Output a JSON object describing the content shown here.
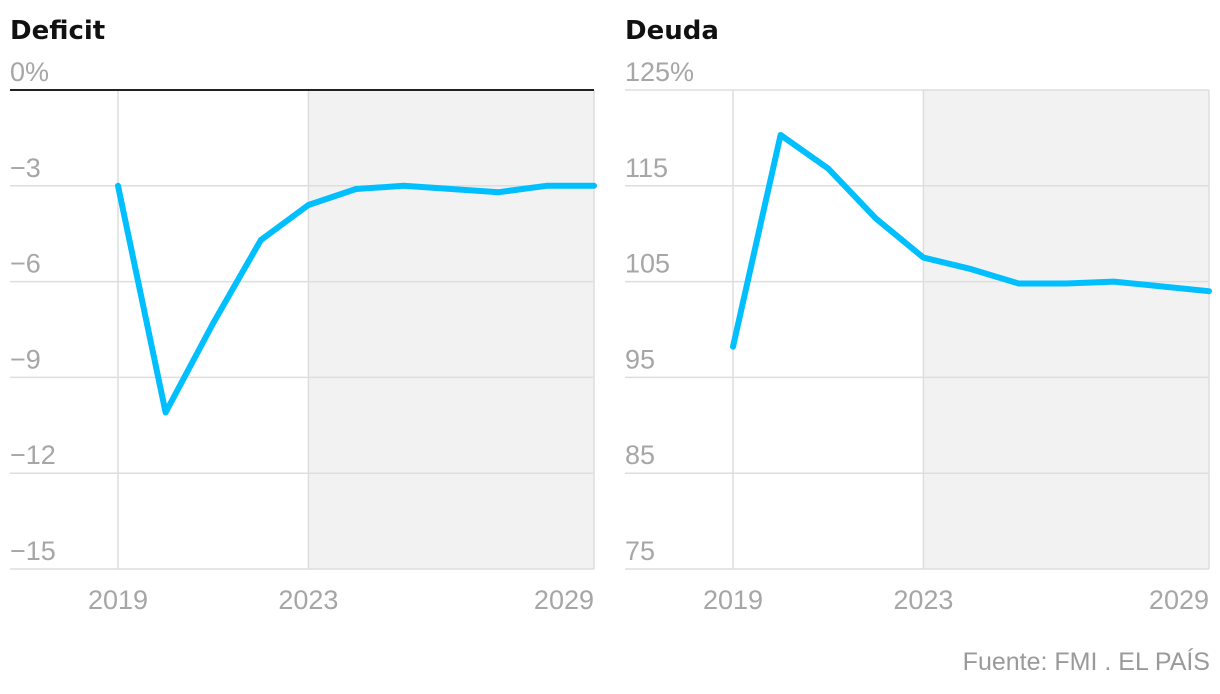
{
  "colors": {
    "line": "#00bfff",
    "shade": "#f2f2f2",
    "grid": "#dedede",
    "baseline": "#222222",
    "tick": "#a6a6a6"
  },
  "chart_data": [
    {
      "type": "line",
      "title": "Deficit",
      "x": [
        2019,
        2020,
        2021,
        2022,
        2023,
        2024,
        2025,
        2026,
        2027,
        2028,
        2029
      ],
      "values": [
        -3.0,
        -10.1,
        -7.3,
        -4.7,
        -3.6,
        -3.1,
        -3.0,
        -3.1,
        -3.2,
        -3.0,
        -3.0
      ],
      "xticks": [
        "2019",
        "2023",
        "2029"
      ],
      "yticks": [
        "0%",
        "−3",
        "−6",
        "−9",
        "−12",
        "−15"
      ],
      "ylim": [
        -15,
        0
      ],
      "xlim": [
        2019,
        2029
      ],
      "projection_start": 2023,
      "baseline_at_zero": true
    },
    {
      "type": "line",
      "title": "Deuda",
      "x": [
        2019,
        2020,
        2021,
        2022,
        2023,
        2024,
        2025,
        2026,
        2027,
        2028,
        2029
      ],
      "values": [
        98.2,
        120.3,
        116.8,
        111.6,
        107.5,
        106.3,
        104.8,
        104.8,
        105.0,
        104.5,
        104.0
      ],
      "xticks": [
        "2019",
        "2023",
        "2029"
      ],
      "yticks": [
        "125%",
        "115",
        "105",
        "95",
        "85",
        "75"
      ],
      "ylim": [
        75,
        125
      ],
      "xlim": [
        2019,
        2029
      ],
      "projection_start": 2023,
      "baseline_at_zero": false
    }
  ],
  "source": "Fuente: FMI . EL PAÍS"
}
